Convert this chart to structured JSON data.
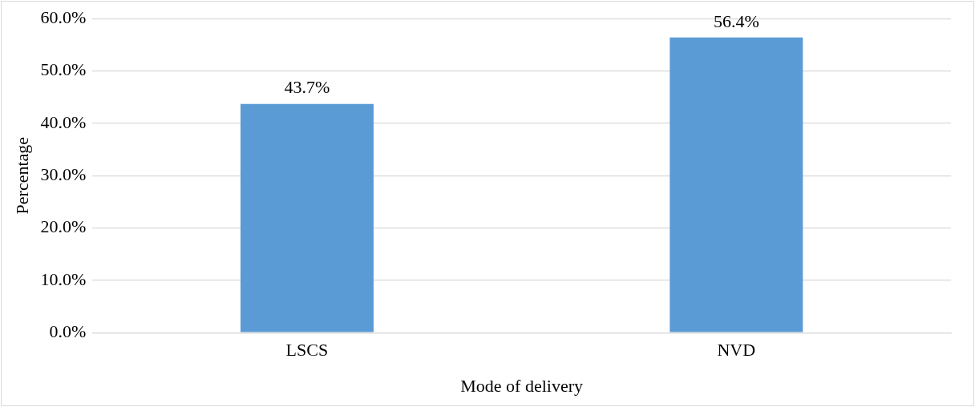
{
  "chart_data": {
    "type": "bar",
    "xlabel": "Mode of delivery",
    "ylabel": "Percentage",
    "categories": [
      "LSCS",
      "NVD"
    ],
    "values": [
      43.7,
      56.4
    ],
    "value_labels": [
      "43.7%",
      "56.4%"
    ],
    "color": "#5b9bd5",
    "ylim": [
      0,
      60
    ],
    "yticks": [
      {
        "value": 0,
        "label": "0.0%"
      },
      {
        "value": 10,
        "label": "10.0%"
      },
      {
        "value": 20,
        "label": "20.0%"
      },
      {
        "value": 30,
        "label": "30.0%"
      },
      {
        "value": 40,
        "label": "40.0%"
      },
      {
        "value": 50,
        "label": "50.0%"
      },
      {
        "value": 60,
        "label": "60.0%"
      }
    ],
    "grid": "y",
    "legend": false
  }
}
